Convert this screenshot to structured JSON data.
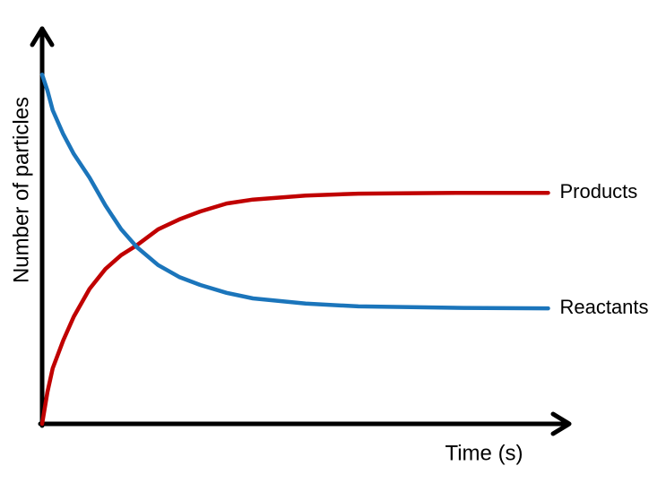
{
  "chart_data": {
    "type": "line",
    "x_label": "Time (s)",
    "y_label": "Number of particles",
    "x": [
      0,
      1,
      2,
      4,
      6,
      9,
      12,
      15,
      18,
      22,
      26,
      30,
      35,
      40,
      50,
      60,
      70,
      80,
      96
    ],
    "xlim": [
      0,
      100
    ],
    "ylim": [
      0,
      100
    ],
    "series": [
      {
        "name": "Products",
        "color": "#c00000",
        "values": [
          0,
          8,
          14,
          21,
          27,
          34,
          39,
          42.5,
          45,
          49,
          51.5,
          53.5,
          55.5,
          56.5,
          57.5,
          58,
          58.1,
          58.2,
          58.2
        ]
      },
      {
        "name": "Reactants",
        "color": "#1b75bb",
        "values": [
          88,
          84,
          79,
          73,
          68,
          62,
          55,
          49,
          44.5,
          40,
          37,
          35,
          33,
          31.6,
          30.3,
          29.6,
          29.4,
          29.2,
          29.1
        ]
      }
    ]
  }
}
